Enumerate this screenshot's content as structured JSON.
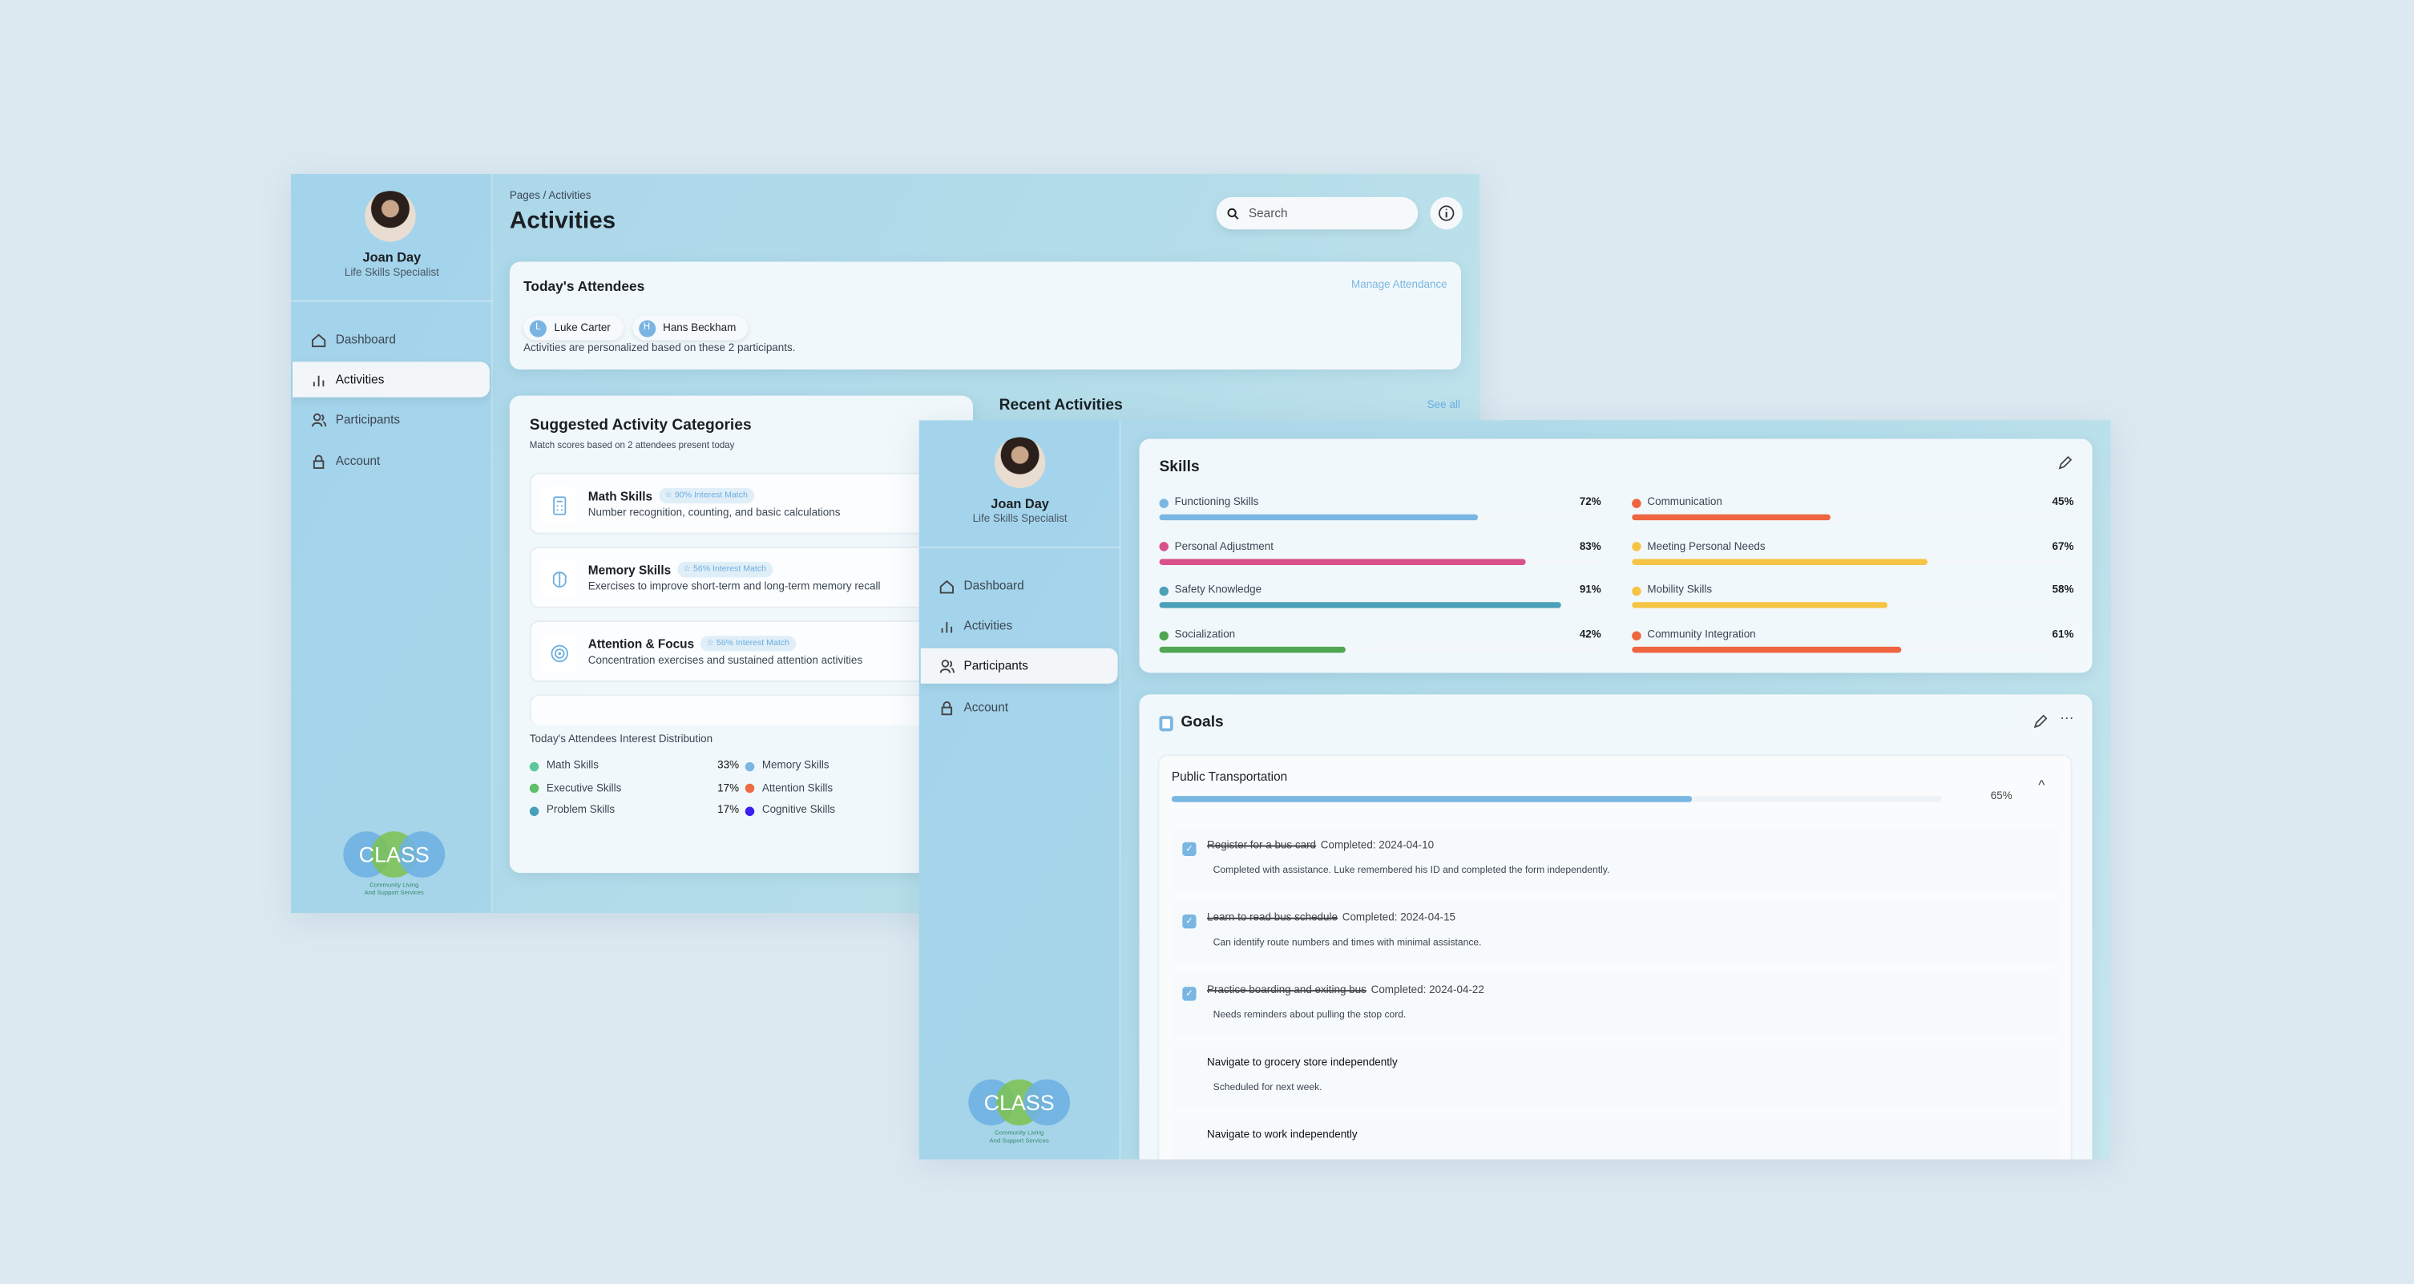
{
  "user": {
    "name": "Joan Day",
    "title": "Life Skills Specialist"
  },
  "nav": [
    {
      "label": "Dashboard",
      "icon": "home-icon"
    },
    {
      "label": "Activities",
      "icon": "bar-chart-icon"
    },
    {
      "label": "Participants",
      "icon": "users-icon"
    },
    {
      "label": "Account",
      "icon": "lock-icon"
    }
  ],
  "logo": {
    "text": "CLASS",
    "subtitle": "Community Living And Support Services"
  },
  "activities_page": {
    "breadcrumb": "Pages / Activities",
    "title": "Activities",
    "search_placeholder": "Search",
    "active_nav": "Activities",
    "attendees": {
      "title": "Today's Attendees",
      "manage_label": "Manage Attendance",
      "people": [
        {
          "initial": "L",
          "name": "Luke Carter"
        },
        {
          "initial": "H",
          "name": "Hans Beckham"
        }
      ],
      "note": "Activities are personalized based on these 2 participants."
    },
    "suggested": {
      "title": "Suggested Activity Categories",
      "subtitle": "Match scores based on 2 attendees present today",
      "categories": [
        {
          "name": "Math Skills",
          "match": "90% Interest Match",
          "description": "Number recognition, counting, and basic calculations",
          "icon": "calculator-icon"
        },
        {
          "name": "Memory Skills",
          "match": "56% Interest Match",
          "description": "Exercises to improve short-term and long-term memory recall",
          "icon": "brain-icon"
        },
        {
          "name": "Attention & Focus",
          "match": "56% Interest Match",
          "description": "Concentration exercises and sustained attention activities",
          "icon": "target-icon"
        }
      ],
      "distribution_title": "Today's Attendees Interest Distribution",
      "distribution": [
        {
          "left": "Math Skills",
          "left_color": "#5cc79a",
          "pct": "33%",
          "right": "Memory Skills",
          "right_color": "#7ab6e2"
        },
        {
          "left": "Executive Skills",
          "left_color": "#5cc06a",
          "pct": "17%",
          "right": "Attention Skills",
          "right_color": "#ee6a43"
        },
        {
          "left": "Problem Skills",
          "left_color": "#4a9fb8",
          "pct": "17%",
          "right": "Cognitive Skills",
          "right_color": "#3b1ff0"
        }
      ]
    },
    "recent": {
      "title": "Recent Activities",
      "see_all": "See all"
    }
  },
  "participants_page": {
    "active_nav": "Participants",
    "skills": {
      "title": "Skills",
      "items": [
        {
          "name": "Functioning Skills",
          "pct": "72%",
          "value": 72,
          "color": "#7ab6e2"
        },
        {
          "name": "Communication",
          "pct": "45%",
          "value": 45,
          "color": "#ee6540"
        },
        {
          "name": "Personal Adjustment",
          "pct": "83%",
          "value": 83,
          "color": "#d9518a"
        },
        {
          "name": "Meeting Personal Needs",
          "pct": "67%",
          "value": 67,
          "color": "#f6c445"
        },
        {
          "name": "Safety Knowledge",
          "pct": "91%",
          "value": 91,
          "color": "#4ba1b8"
        },
        {
          "name": "Mobility Skills",
          "pct": "58%",
          "value": 58,
          "color": "#f6c445"
        },
        {
          "name": "Socialization",
          "pct": "42%",
          "value": 42,
          "color": "#50a652"
        },
        {
          "name": "Community Integration",
          "pct": "61%",
          "value": 61,
          "color": "#ee6540"
        }
      ]
    },
    "goals": {
      "title": "Goals",
      "goal": {
        "name": "Public Transportation",
        "pct": "65%",
        "value": 65,
        "tasks": [
          {
            "name": "Register for a bus card",
            "done": true,
            "completed": "Completed: 2024-04-10",
            "note": "Completed with assistance. Luke remembered his ID and completed the form independently."
          },
          {
            "name": "Learn to read bus schedule",
            "done": true,
            "completed": "Completed: 2024-04-15",
            "note": "Can identify route numbers and times with minimal assistance."
          },
          {
            "name": "Practice boarding and exiting bus",
            "done": true,
            "completed": "Completed: 2024-04-22",
            "note": "Needs reminders about pulling the stop cord."
          },
          {
            "name": "Navigate to grocery store independently",
            "done": false,
            "completed": "",
            "note": "Scheduled for next week."
          },
          {
            "name": "Navigate to work independently",
            "done": false,
            "completed": "",
            "note": ""
          }
        ]
      }
    }
  }
}
